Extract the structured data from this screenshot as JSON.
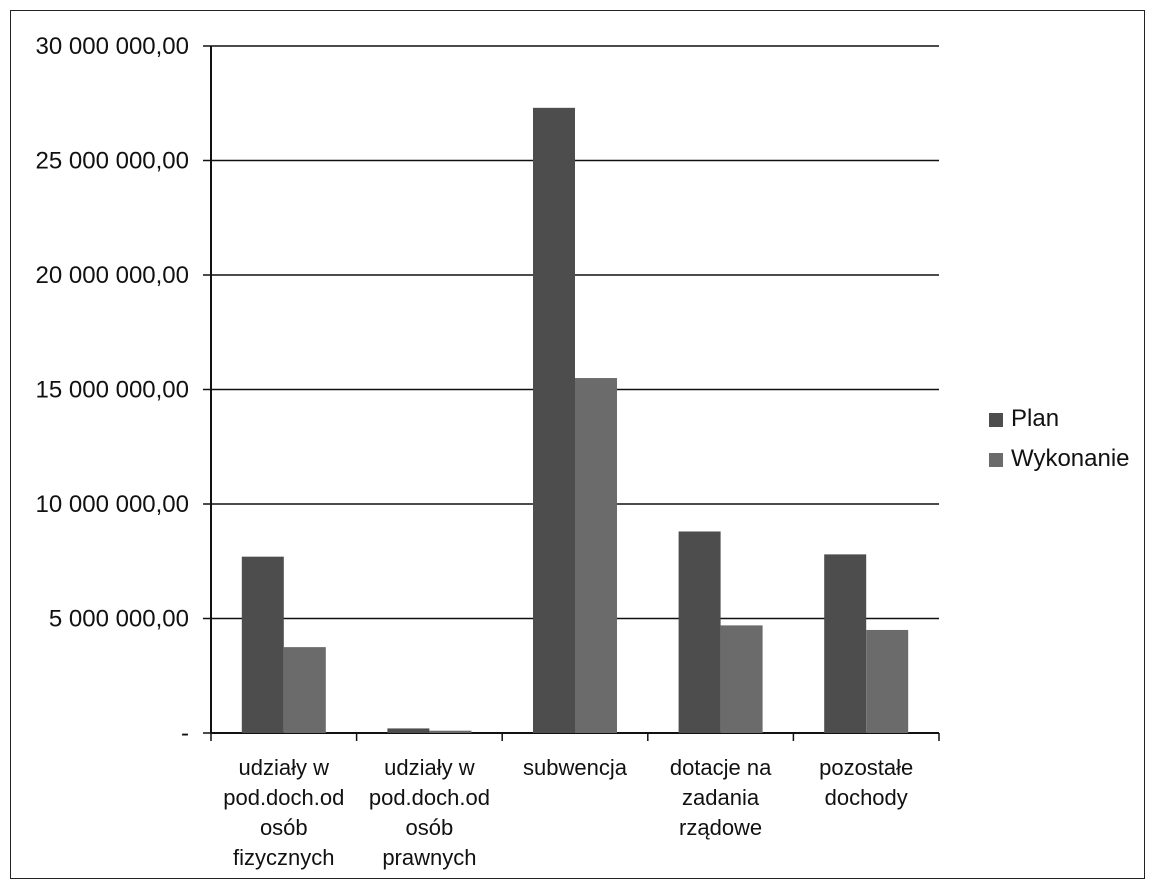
{
  "chart_data": {
    "type": "bar",
    "title": "",
    "xlabel": "",
    "ylabel": "",
    "categories": [
      [
        "udziały w",
        "pod.doch.od",
        "osób",
        "fizycznych"
      ],
      [
        "udziały w",
        "pod.doch.od",
        "osób",
        "prawnych"
      ],
      [
        "subwencja"
      ],
      [
        "dotacje na",
        "zadania",
        "rządowe"
      ],
      [
        "pozostałe",
        "dochody"
      ]
    ],
    "series": [
      {
        "name": "Plan",
        "values": [
          7700000,
          200000,
          27300000,
          8800000,
          7800000
        ]
      },
      {
        "name": "Wykonanie",
        "values": [
          3750000,
          100000,
          15500000,
          4700000,
          4500000
        ]
      }
    ],
    "ylim": [
      0,
      30000000
    ],
    "yticks": [
      0,
      5000000,
      10000000,
      15000000,
      20000000,
      25000000,
      30000000
    ],
    "ytick_labels": [
      "-",
      "5 000 000,00",
      "10 000 000,00",
      "15 000 000,00",
      "20 000 000,00",
      "25 000 000,00",
      "30 000 000,00"
    ],
    "grid": true,
    "legend_position": "right",
    "colors": {
      "Plan": "#4d4d4d",
      "Wykonanie": "#6b6b6b",
      "grid": "#111111"
    }
  }
}
